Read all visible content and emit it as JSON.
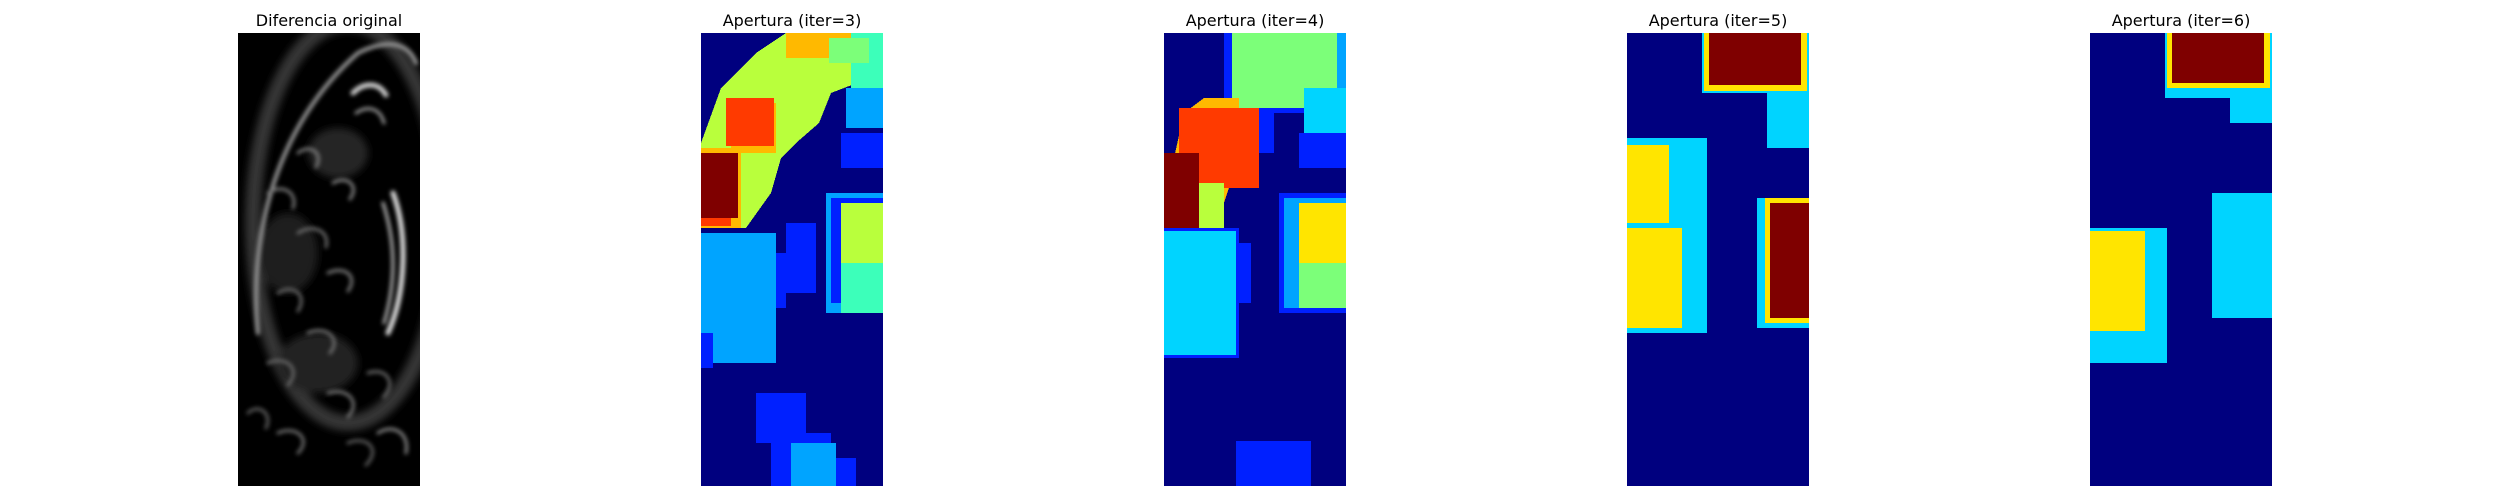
{
  "panels": [
    {
      "title": "Diferencia original",
      "colormap": "gray"
    },
    {
      "title": "Apertura (iter=3)",
      "colormap": "jet"
    },
    {
      "title": "Apertura (iter=4)",
      "colormap": "jet"
    },
    {
      "title": "Apertura (iter=5)",
      "colormap": "jet"
    },
    {
      "title": "Apertura (iter=6)",
      "colormap": "jet"
    }
  ],
  "colors": {
    "jet_dark_blue": "#00007f",
    "jet_blue": "#0020ff",
    "jet_azure": "#00a4ff",
    "jet_cyan": "#00d4ff",
    "jet_aquamarine": "#3cffba",
    "jet_green": "#7cff79",
    "jet_lime": "#b9ff3c",
    "jet_yellow": "#ffe500",
    "jet_orange": "#ffb900",
    "jet_red": "#ff3a00",
    "jet_dark_red": "#7f0000"
  }
}
